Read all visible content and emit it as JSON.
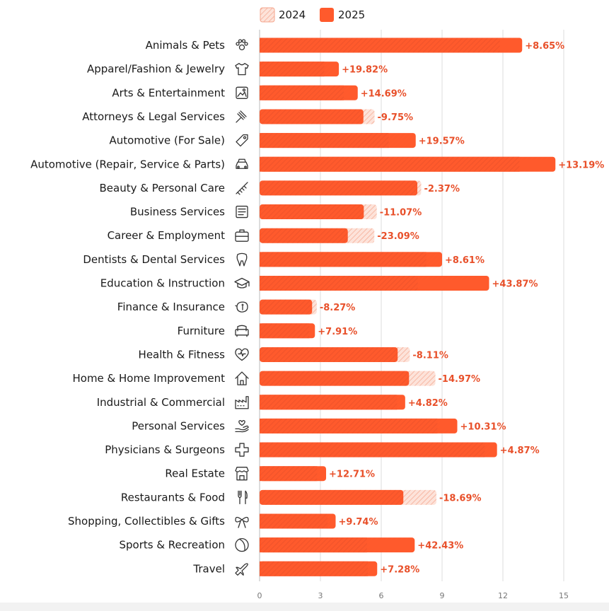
{
  "legend": {
    "items": [
      {
        "label": "2024",
        "pattern": "hatched"
      },
      {
        "label": "2025",
        "pattern": "solid"
      }
    ]
  },
  "colors": {
    "bar_2025": "#ff5a2c",
    "bar_2024_fill": "#fde3da",
    "hatch": "#f4a58c",
    "overlap_hatch": "#e8502a",
    "positive_label": "#e8502a",
    "negative_label": "#e8502a",
    "grid": "#dddddd",
    "axis": "#bbbbbb"
  },
  "chart_data": {
    "type": "bar",
    "orientation": "horizontal",
    "title": "",
    "xlabel": "",
    "ylabel": "",
    "xlim": [
      0,
      15
    ],
    "xticks": [
      0,
      3,
      6,
      9,
      12,
      15
    ],
    "grid": true,
    "legend_position": "top-center",
    "categories": [
      "Animals & Pets",
      "Apparel/Fashion & Jewelry",
      "Arts & Entertainment",
      "Attorneys & Legal Services",
      "Automotive (For Sale)",
      "Automotive (Repair, Service & Parts)",
      "Beauty & Personal Care",
      "Business Services",
      "Career & Employment",
      "Dentists & Dental Services",
      "Education & Instruction",
      "Finance & Insurance",
      "Furniture",
      "Health & Fitness",
      "Home & Home Improvement",
      "Industrial & Commercial",
      "Personal Services",
      "Physicians & Surgeons",
      "Real Estate",
      "Restaurants & Food",
      "Shopping, Collectibles & Gifts",
      "Sports & Recreation",
      "Travel"
    ],
    "icons": [
      "paw-icon",
      "tshirt-icon",
      "picture-icon",
      "gavel-icon",
      "price-tag-icon",
      "car-icon",
      "comb-icon",
      "document-icon",
      "briefcase-icon",
      "tooth-icon",
      "graduation-cap-icon",
      "piggy-bank-icon",
      "armchair-icon",
      "heart-pulse-icon",
      "house-icon",
      "factory-icon",
      "hand-heart-icon",
      "medical-cross-icon",
      "storefront-icon",
      "fork-knife-icon",
      "gift-bow-icon",
      "ball-icon",
      "airplane-icon"
    ],
    "series": [
      {
        "name": "2024",
        "values": [
          11.92,
          3.26,
          4.22,
          5.67,
          6.44,
          12.89,
          7.97,
          5.78,
          5.66,
          8.29,
          7.87,
          2.82,
          2.53,
          7.41,
          8.67,
          6.85,
          8.84,
          11.17,
          2.91,
          8.72,
          3.42,
          5.37,
          5.41
        ]
      },
      {
        "name": "2025",
        "values": [
          12.95,
          3.91,
          4.84,
          5.12,
          7.7,
          14.59,
          7.78,
          5.14,
          4.35,
          9.0,
          11.32,
          2.59,
          2.73,
          6.81,
          7.37,
          7.18,
          9.75,
          11.71,
          3.28,
          7.09,
          3.75,
          7.65,
          5.8
        ]
      }
    ],
    "change_labels": [
      "+8.65%",
      "+19.82%",
      "+14.69%",
      "-9.75%",
      "+19.57%",
      "+13.19%",
      "-2.37%",
      "-11.07%",
      "-23.09%",
      "+8.61%",
      "+43.87%",
      "-8.27%",
      "+7.91%",
      "-8.11%",
      "-14.97%",
      "+4.82%",
      "+10.31%",
      "+4.87%",
      "+12.71%",
      "-18.69%",
      "+9.74%",
      "+42.43%",
      "+7.28%"
    ]
  }
}
